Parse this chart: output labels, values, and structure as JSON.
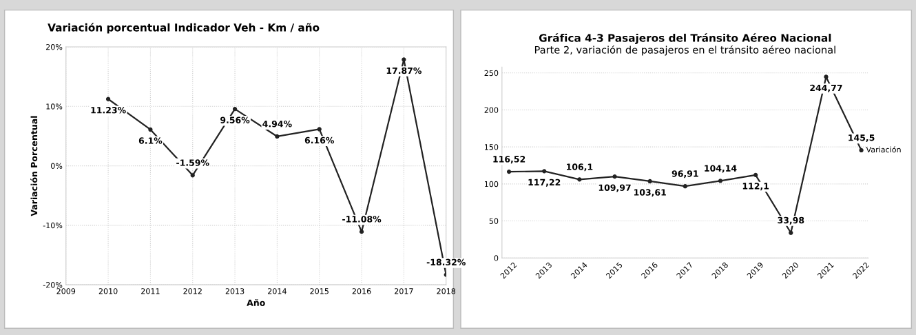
{
  "chart_data": [
    {
      "type": "line",
      "title": "Variación porcentual Indicador Veh - Km / año",
      "xlabel": "Año",
      "ylabel": "Variación Porcentual",
      "x": [
        2010,
        2011,
        2012,
        2013,
        2014,
        2015,
        2016,
        2017,
        2018
      ],
      "series": [
        {
          "color": "#222222",
          "values": [
            11.23,
            6.1,
            -1.59,
            9.56,
            4.94,
            6.16,
            -11.08,
            17.87,
            -18.32
          ],
          "value_labels": [
            "11.23%",
            "6.1%",
            "-1.59%",
            "9.56%",
            "4.94%",
            "6.16%",
            "-11.08%",
            "17.87%",
            "-18.32%"
          ]
        }
      ],
      "xlim": [
        2009,
        2018
      ],
      "xticks": [
        2009,
        2010,
        2011,
        2012,
        2013,
        2014,
        2015,
        2016,
        2017,
        2018
      ],
      "ylim": [
        -20,
        20
      ],
      "yticks": [
        {
          "value": -20,
          "label": "-20%"
        },
        {
          "value": -10,
          "label": "-10%"
        },
        {
          "value": 0,
          "label": "0%"
        },
        {
          "value": 10,
          "label": "10%"
        },
        {
          "value": 20,
          "label": "20%"
        }
      ],
      "grid": true,
      "marker": "circle",
      "line_style": "solid"
    },
    {
      "type": "line",
      "title": "Gráfica 4-3 Pasajeros del Tránsito Aéreo Nacional",
      "subtitle": "Parte 2, variación de pasajeros en el tránsito aéreo nacional",
      "categories": [
        "2012",
        "2013",
        "2014",
        "2015",
        "2016",
        "2017",
        "2018",
        "2019",
        "2020",
        "2021",
        "2022"
      ],
      "series": [
        {
          "name": "Variación",
          "color": "#222222",
          "values": [
            116.52,
            117.22,
            106.1,
            109.97,
            103.61,
            96.91,
            104.14,
            112.1,
            33.98,
            244.77,
            145.5
          ],
          "value_labels": [
            "116,52",
            "117,22",
            "106,1",
            "109,97",
            "103,61",
            "96,91",
            "104,14",
            "112,1",
            "33,98",
            "244,77",
            "145,5"
          ]
        }
      ],
      "ylim": [
        0,
        258
      ],
      "yticks": [
        0,
        50,
        100,
        150,
        200,
        250
      ],
      "grid": "y",
      "marker": "circle",
      "line_style": "solid"
    }
  ]
}
